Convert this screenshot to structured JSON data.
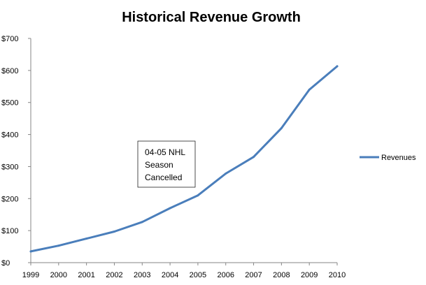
{
  "chart_data": {
    "type": "line",
    "title": "Historical Revenue Growth",
    "xlabel": "",
    "ylabel": "",
    "x": [
      "1999",
      "2000",
      "2001",
      "2002",
      "2003",
      "2004",
      "2005",
      "2006",
      "2007",
      "2008",
      "2009",
      "2010"
    ],
    "series": [
      {
        "name": "Revenues",
        "color": "#4a7ebb",
        "values": [
          35,
          53,
          75,
          97,
          127,
          170,
          210,
          278,
          330,
          420,
          540,
          613
        ]
      }
    ],
    "ylim": [
      0,
      700
    ],
    "yticks": [
      0,
      100,
      200,
      300,
      400,
      500,
      600,
      700
    ],
    "ytick_labels": [
      "$0",
      "$100",
      "$200",
      "$300",
      "$400",
      "$500",
      "$600",
      "$700"
    ],
    "grid": false,
    "legend_position": "right",
    "annotations": [
      {
        "lines": [
          "04-05 NHL",
          "Season",
          "Cancelled"
        ]
      }
    ]
  }
}
